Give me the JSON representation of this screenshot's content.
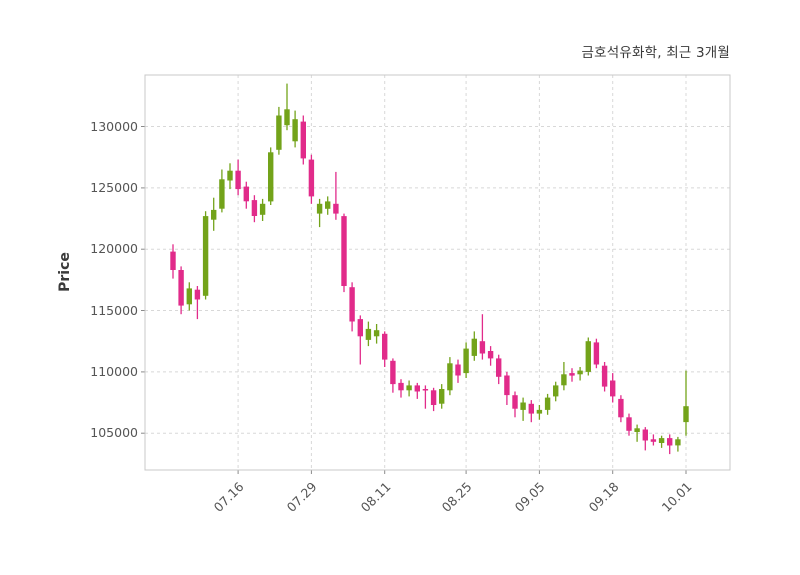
{
  "chart_data": {
    "type": "candlestick",
    "title": "금호석유화학, 최근 3개월",
    "ylabel": "Price",
    "ylim": [
      102000,
      134200
    ],
    "yticks": [
      105000,
      110000,
      115000,
      120000,
      125000,
      130000
    ],
    "xticks": [
      {
        "index": 8,
        "label": "07.16"
      },
      {
        "index": 17,
        "label": "07.29"
      },
      {
        "index": 26,
        "label": "08.11"
      },
      {
        "index": 36,
        "label": "08.25"
      },
      {
        "index": 45,
        "label": "09.05"
      },
      {
        "index": 54,
        "label": "09.18"
      },
      {
        "index": 63,
        "label": "10.01"
      }
    ],
    "grid": true,
    "legend": "none",
    "candle_format": "open,high,low,close",
    "colors": {
      "up": "#73a31a",
      "down": "#e12b8a",
      "grid": "#d8d8d8",
      "border": "#c8c8c8",
      "tick": "#8a8a8a",
      "axis_text": "#555555",
      "title_text": "#3a3a3a",
      "background": "#ffffff"
    },
    "candles": [
      [
        119800,
        120400,
        117600,
        118300
      ],
      [
        118300,
        118600,
        114700,
        115400
      ],
      [
        115500,
        117300,
        115000,
        116800
      ],
      [
        116700,
        117000,
        114300,
        115900
      ],
      [
        116200,
        123100,
        115900,
        122700
      ],
      [
        122400,
        124200,
        121500,
        123200
      ],
      [
        123300,
        126500,
        123000,
        125700
      ],
      [
        125600,
        127000,
        124900,
        126400
      ],
      [
        126400,
        127300,
        124400,
        124900
      ],
      [
        125100,
        125500,
        123300,
        123900
      ],
      [
        124000,
        124400,
        122200,
        122700
      ],
      [
        122800,
        124100,
        122300,
        123700
      ],
      [
        123900,
        128300,
        123600,
        127900
      ],
      [
        128100,
        131600,
        127700,
        130900
      ],
      [
        130100,
        133500,
        129700,
        131400
      ],
      [
        128800,
        131300,
        128300,
        130600
      ],
      [
        130400,
        130900,
        126900,
        127400
      ],
      [
        127300,
        127700,
        123700,
        124300
      ],
      [
        122900,
        124100,
        121800,
        123700
      ],
      [
        123300,
        124300,
        122800,
        123900
      ],
      [
        123700,
        126300,
        122400,
        122900
      ],
      [
        122700,
        122900,
        116500,
        117000
      ],
      [
        116900,
        117300,
        113300,
        114100
      ],
      [
        114300,
        114600,
        110600,
        112900
      ],
      [
        112600,
        114100,
        112100,
        113500
      ],
      [
        112900,
        113900,
        112300,
        113400
      ],
      [
        113100,
        113300,
        110400,
        111000
      ],
      [
        110900,
        111100,
        108300,
        109000
      ],
      [
        109100,
        109400,
        107900,
        108500
      ],
      [
        108500,
        109300,
        108000,
        108900
      ],
      [
        108900,
        109100,
        107800,
        108400
      ],
      [
        108600,
        108900,
        107000,
        108500
      ],
      [
        108500,
        108700,
        106800,
        107300
      ],
      [
        107400,
        109000,
        107000,
        108600
      ],
      [
        108500,
        111200,
        108100,
        110700
      ],
      [
        110600,
        111000,
        109100,
        109700
      ],
      [
        109900,
        112400,
        109500,
        111900
      ],
      [
        111300,
        113300,
        110900,
        112700
      ],
      [
        112500,
        114700,
        111000,
        111500
      ],
      [
        111700,
        112100,
        110500,
        111100
      ],
      [
        111100,
        111400,
        109000,
        109600
      ],
      [
        109700,
        110000,
        107300,
        108100
      ],
      [
        108100,
        108400,
        106300,
        107000
      ],
      [
        106900,
        107900,
        106000,
        107500
      ],
      [
        107400,
        107700,
        105900,
        106600
      ],
      [
        106600,
        107300,
        106100,
        106900
      ],
      [
        106900,
        108200,
        106500,
        107900
      ],
      [
        108000,
        109200,
        107600,
        108900
      ],
      [
        108900,
        110800,
        108500,
        109800
      ],
      [
        109900,
        110300,
        109200,
        109700
      ],
      [
        109800,
        110400,
        109300,
        110100
      ],
      [
        110000,
        112800,
        109700,
        112500
      ],
      [
        112400,
        112700,
        110300,
        110600
      ],
      [
        110500,
        110800,
        108400,
        108800
      ],
      [
        109300,
        109900,
        107500,
        108000
      ],
      [
        107800,
        108100,
        105900,
        106300
      ],
      [
        106300,
        106600,
        104800,
        105200
      ],
      [
        105100,
        105700,
        104300,
        105400
      ],
      [
        105300,
        105500,
        103600,
        104400
      ],
      [
        104500,
        104900,
        104000,
        104300
      ],
      [
        104200,
        104800,
        103800,
        104600
      ],
      [
        104600,
        104900,
        103300,
        104000
      ],
      [
        104000,
        104700,
        103500,
        104500
      ],
      [
        105900,
        110100,
        104800,
        107200
      ]
    ]
  }
}
